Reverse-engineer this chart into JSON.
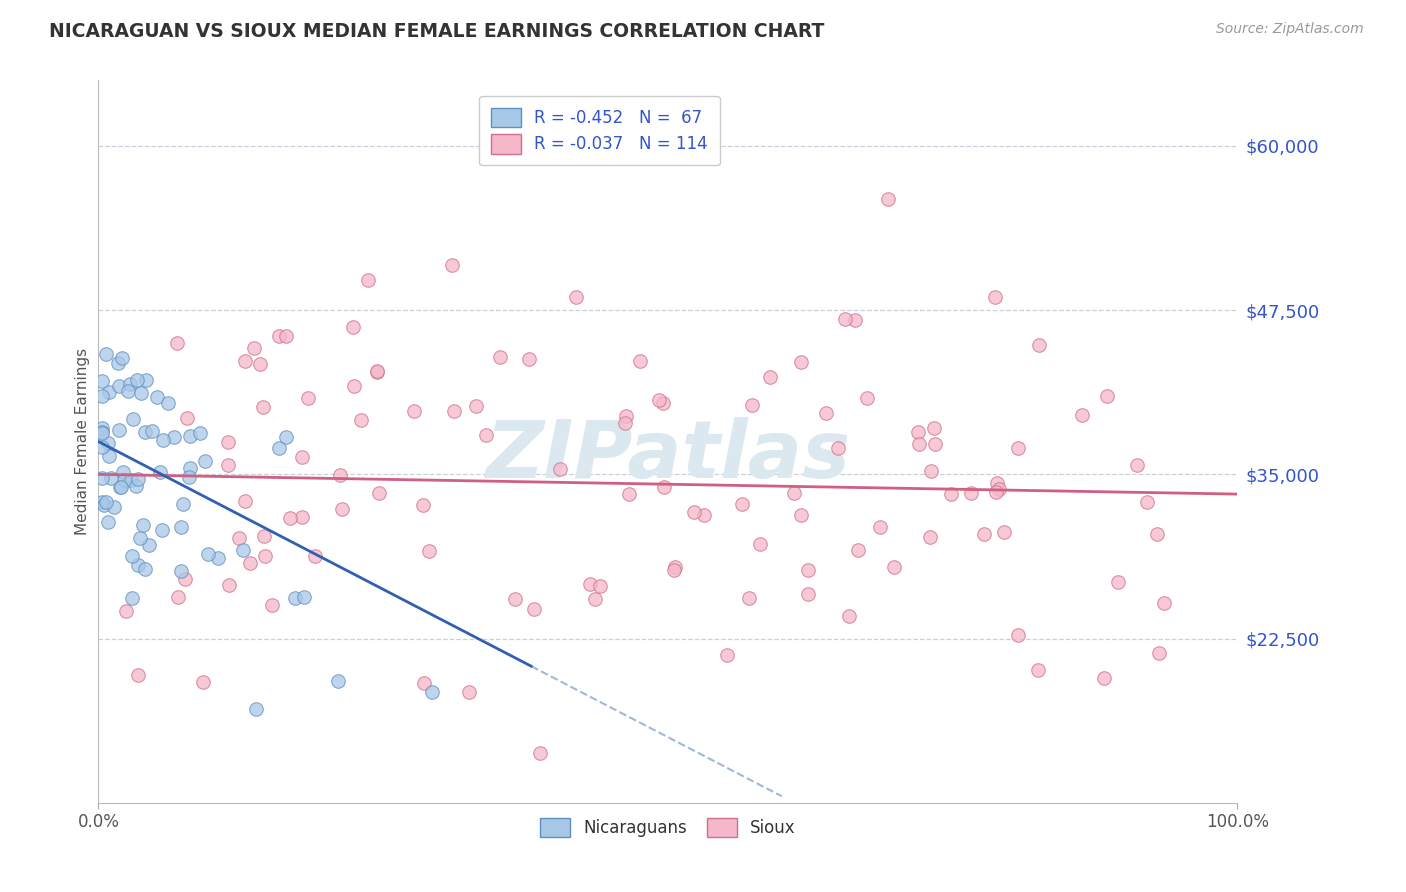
{
  "title": "NICARAGUAN VS SIOUX MEDIAN FEMALE EARNINGS CORRELATION CHART",
  "source_text": "Source: ZipAtlas.com",
  "ylabel": "Median Female Earnings",
  "xlim": [
    0.0,
    100.0
  ],
  "ylim": [
    10000,
    65000
  ],
  "yticks": [
    22500,
    35000,
    47500,
    60000
  ],
  "ytick_labels": [
    "$22,500",
    "$35,000",
    "$47,500",
    "$60,000"
  ],
  "xticks": [
    0.0,
    100.0
  ],
  "xtick_labels": [
    "0.0%",
    "100.0%"
  ],
  "legend_entries": [
    {
      "label": "R = -0.452   N =  67",
      "color": "#a8c4e0"
    },
    {
      "label": "R = -0.037   N = 114",
      "color": "#f4a8b8"
    }
  ],
  "legend_bottom": [
    "Nicaraguans",
    "Sioux"
  ],
  "blue_face_color": "#a8c8e8",
  "blue_edge_color": "#6090c0",
  "pink_face_color": "#f4b8c8",
  "pink_edge_color": "#d07090",
  "blue_line_color": "#3060b0",
  "pink_line_color": "#d06080",
  "title_color": "#333333",
  "axis_label_color": "#555555",
  "ytick_color": "#3355cc",
  "watermark": "ZIPatlas",
  "watermark_color": "#dce8f0",
  "background_color": "#ffffff",
  "grid_color": "#c8d0dc",
  "blue_scatter_seed": 12,
  "pink_scatter_seed": 34
}
